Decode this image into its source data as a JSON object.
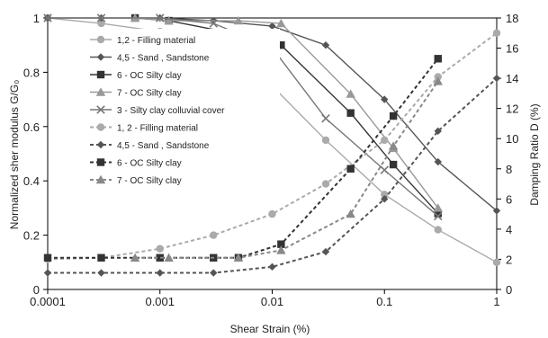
{
  "chart_data": {
    "type": "line",
    "xlabel": "Shear Strain (%)",
    "ylabel_left": "Normalized sher modulus G/G₀",
    "ylabel_right": "Damping Ratio D (%)",
    "x_scale": "log",
    "xlim": [
      0.0001,
      1
    ],
    "ylim_left": [
      0,
      1
    ],
    "ylim_right": [
      0,
      18
    ],
    "x_ticks": [
      0.0001,
      0.001,
      0.01,
      0.1,
      1
    ],
    "x_tick_labels": [
      "0.0001",
      "0.001",
      "0.01",
      "0.1",
      "1"
    ],
    "y_left_ticks": [
      0,
      0.2,
      0.4,
      0.6,
      0.8,
      1
    ],
    "y_left_tick_labels": [
      "0",
      "0.2",
      "0.4",
      "0.6",
      "0.8",
      "1"
    ],
    "y_right_ticks": [
      0,
      2,
      4,
      6,
      8,
      10,
      12,
      14,
      16,
      18
    ],
    "y_right_tick_labels": [
      "0",
      "2",
      "4",
      "6",
      "8",
      "10",
      "12",
      "14",
      "16",
      "18"
    ],
    "grid": false,
    "legend_position": "left",
    "series": [
      {
        "name": "1,2 - Filling material",
        "axis": "left",
        "dash": false,
        "marker": "circle",
        "color": "#aaaaaa",
        "x": [
          0.0001,
          0.0003,
          0.001,
          0.003,
          0.01,
          0.03,
          0.1,
          0.3,
          1
        ],
        "y": [
          1.0,
          0.98,
          0.95,
          0.9,
          0.75,
          0.55,
          0.35,
          0.22,
          0.1
        ]
      },
      {
        "name": "4,5 - Sand , Sandstone",
        "axis": "left",
        "dash": false,
        "marker": "diamond",
        "color": "#555555",
        "x": [
          0.0001,
          0.0003,
          0.001,
          0.003,
          0.01,
          0.03,
          0.1,
          0.3,
          1
        ],
        "y": [
          1.0,
          1.0,
          1.0,
          0.99,
          0.97,
          0.9,
          0.7,
          0.47,
          0.29
        ]
      },
      {
        "name": "6 - OC Silty clay",
        "axis": "left",
        "dash": false,
        "marker": "square",
        "color": "#333333",
        "x": [
          0.0006,
          0.0012,
          0.005,
          0.012,
          0.05,
          0.12,
          0.3
        ],
        "y": [
          1.0,
          0.99,
          0.94,
          0.9,
          0.65,
          0.46,
          0.28
        ]
      },
      {
        "name": "7 - OC Silty clay",
        "axis": "left",
        "dash": false,
        "marker": "triangle",
        "color": "#999999",
        "x": [
          0.0006,
          0.0012,
          0.005,
          0.012,
          0.05,
          0.12,
          0.3
        ],
        "y": [
          1.0,
          0.99,
          0.99,
          0.98,
          0.72,
          0.52,
          0.3
        ]
      },
      {
        "name": "3 - Silty clay colluvial cover",
        "axis": "left",
        "dash": false,
        "marker": "x",
        "color": "#777777",
        "x": [
          0.0001,
          0.0003,
          0.001,
          0.003,
          0.01,
          0.03,
          0.1,
          0.3
        ],
        "y": [
          1.0,
          1.0,
          1.0,
          0.98,
          0.89,
          0.63,
          0.44,
          0.27
        ]
      },
      {
        "name": "1, 2 - Filling material",
        "axis": "right",
        "dash": true,
        "marker": "circle",
        "color": "#aaaaaa",
        "x": [
          0.0001,
          0.0003,
          0.001,
          0.003,
          0.01,
          0.03,
          0.1,
          0.3,
          1
        ],
        "y": [
          2.0,
          2.1,
          2.7,
          3.6,
          5.0,
          7.0,
          9.9,
          14.1,
          17.0
        ]
      },
      {
        "name": "4,5 - Sand , Sandstone",
        "axis": "right",
        "dash": true,
        "marker": "diamond",
        "color": "#555555",
        "x": [
          0.0001,
          0.0003,
          0.001,
          0.003,
          0.01,
          0.03,
          0.1,
          0.3,
          1
        ],
        "y": [
          1.1,
          1.1,
          1.1,
          1.1,
          1.5,
          2.5,
          6.0,
          10.5,
          14.0
        ]
      },
      {
        "name": "6 - OC Silty clay",
        "axis": "right",
        "dash": true,
        "marker": "square",
        "color": "#333333",
        "x": [
          0.0001,
          0.0003,
          0.001,
          0.003,
          0.005,
          0.012,
          0.05,
          0.12,
          0.3
        ],
        "y": [
          2.1,
          2.1,
          2.1,
          2.1,
          2.1,
          3.0,
          8.0,
          11.5,
          15.3
        ]
      },
      {
        "name": "7 - OC Silty clay",
        "axis": "right",
        "dash": true,
        "marker": "triangle",
        "color": "#888888",
        "x": [
          0.0006,
          0.0012,
          0.005,
          0.012,
          0.05,
          0.12,
          0.3
        ],
        "y": [
          2.1,
          2.1,
          2.1,
          2.6,
          5.0,
          9.5,
          13.8
        ]
      }
    ]
  }
}
